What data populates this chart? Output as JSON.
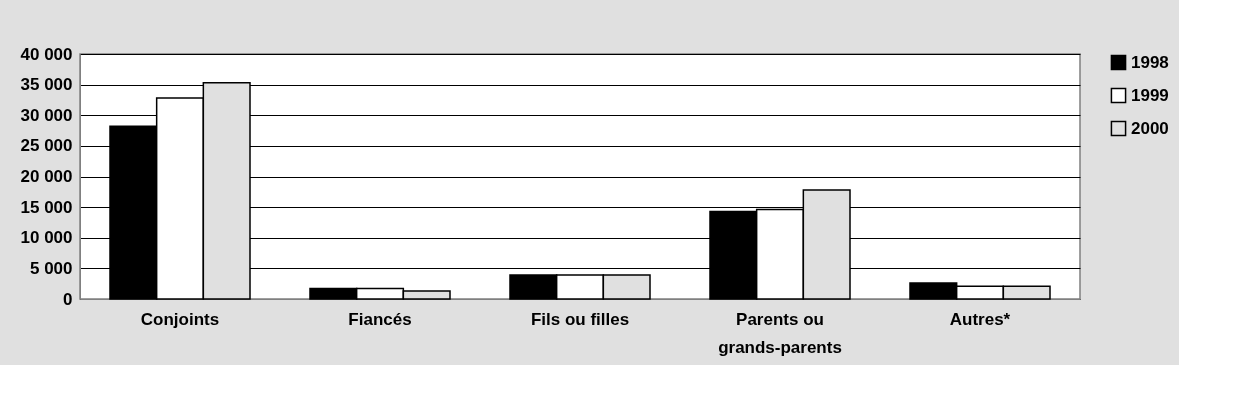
{
  "chart_data": {
    "type": "bar",
    "categories": [
      "Conjoints",
      "Fiancés",
      "Fils ou filles",
      "Parents ou\ngrands-parents",
      "Autres*"
    ],
    "series": [
      {
        "name": "1998",
        "color": "#000000",
        "values": [
          28200,
          1700,
          3900,
          14300,
          2600
        ]
      },
      {
        "name": "1999",
        "color": "#ffffff",
        "values": [
          32800,
          1700,
          3900,
          14600,
          2100
        ]
      },
      {
        "name": "2000",
        "color": "#e0e0e0",
        "values": [
          35300,
          1300,
          3900,
          17800,
          2100
        ]
      }
    ],
    "ylim": [
      0,
      40000
    ],
    "yticks": [
      {
        "value": 0,
        "label": "0"
      },
      {
        "value": 5000,
        "label": "5 000"
      },
      {
        "value": 10000,
        "label": "10 000"
      },
      {
        "value": 15000,
        "label": "15 000"
      },
      {
        "value": 20000,
        "label": "20 000"
      },
      {
        "value": 25000,
        "label": "25 000"
      },
      {
        "value": 30000,
        "label": "30 000"
      },
      {
        "value": 35000,
        "label": "35 000"
      },
      {
        "value": 40000,
        "label": "40 000"
      }
    ],
    "grid": "y",
    "legend": "right"
  }
}
